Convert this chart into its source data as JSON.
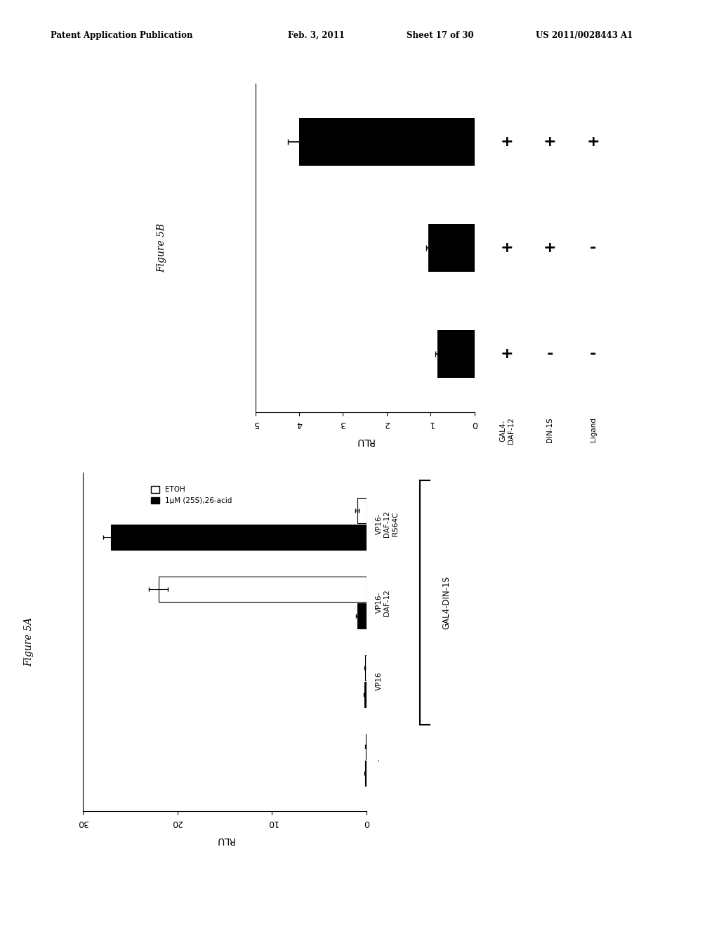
{
  "fig5b": {
    "bars": [
      {
        "value": 4.0,
        "error": 0.25,
        "gal4": "+",
        "din1s": "+",
        "ligand": "+"
      },
      {
        "value": 1.05,
        "error": 0.06,
        "gal4": "+",
        "din1s": "+",
        "ligand": "-"
      },
      {
        "value": 0.85,
        "error": 0.05,
        "gal4": "+",
        "din1s": "-",
        "ligand": "-"
      }
    ],
    "xlim": [
      0,
      5
    ],
    "xticks": [
      0,
      1,
      2,
      3,
      4,
      5
    ],
    "ylabel": "RLU",
    "figure_label": "Figure 5B",
    "col_labels": [
      "GAL4-\nDAF-12",
      "DIN-1S",
      "Ligand"
    ]
  },
  "fig5a": {
    "groups": [
      {
        "label": "-",
        "etoh": 0.12,
        "etoh_err": 0.04,
        "ligand": 0.18,
        "ligand_err": 0.04
      },
      {
        "label": "VP16",
        "etoh": 0.18,
        "etoh_err": 0.04,
        "ligand": 0.25,
        "ligand_err": 0.04
      },
      {
        "label": "VP16-\nDAF-12",
        "etoh": 22.0,
        "etoh_err": 1.0,
        "ligand": 1.0,
        "ligand_err": 0.15
      },
      {
        "label": "VP16-\nDAF-12\nR564C",
        "etoh": 1.0,
        "etoh_err": 0.2,
        "ligand": 27.0,
        "ligand_err": 0.8
      }
    ],
    "xlim": [
      0,
      30
    ],
    "xticks": [
      0,
      10,
      20,
      30
    ],
    "ylabel": "RLU",
    "xlabel_bracket": "GAL4-DIN-1S",
    "legend_etoh": "ETOH",
    "legend_ligand": "1μM (25S),26-acid",
    "figure_label": "Figure 5A"
  },
  "header_text": "Patent Application Publication",
  "header_date": "Feb. 3, 2011",
  "header_sheet": "Sheet 17 of 30",
  "header_patent": "US 2011/0028443 A1",
  "bg_color": "#ffffff"
}
